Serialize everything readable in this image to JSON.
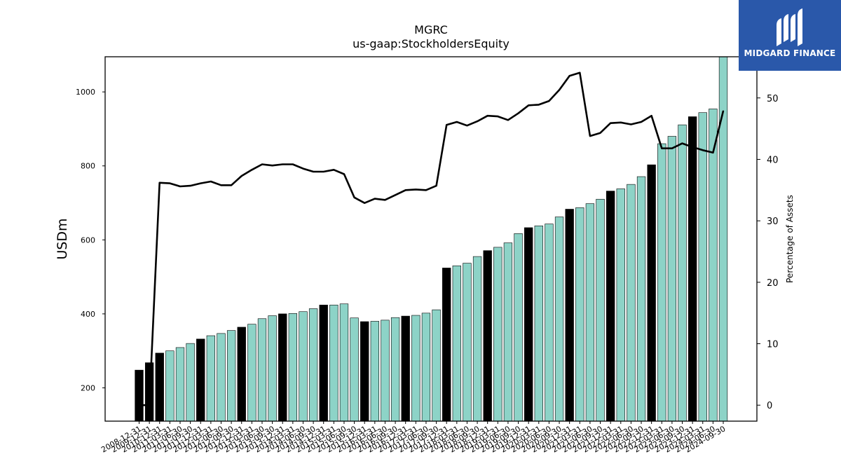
{
  "chart_data": {
    "type": "bar",
    "title": "MGRC",
    "subtitle": "us-gaap:StockholdersEquity",
    "ylabel": "USDm",
    "y2label": "Percentage of Assets",
    "ylim": [
      110,
      1095
    ],
    "y2lim": [
      -2.6,
      56.7
    ],
    "yticks": [
      200,
      400,
      600,
      800,
      1000
    ],
    "y2ticks": [
      0,
      10,
      20,
      30,
      40,
      50
    ],
    "colors": {
      "annual": "#000000",
      "quarter": "#8dd3c7",
      "line": "#000000"
    },
    "categories": [
      "2008-12-31",
      "2009-12-31",
      "2010-12-31",
      "2011-03-31",
      "2011-06-30",
      "2011-09-30",
      "2011-12-31",
      "2012-03-31",
      "2012-06-30",
      "2012-09-30",
      "2012-12-31",
      "2013-03-31",
      "2013-06-30",
      "2013-09-30",
      "2013-12-31",
      "2014-03-31",
      "2014-06-30",
      "2014-09-30",
      "2014-12-31",
      "2015-03-31",
      "2015-06-30",
      "2015-09-30",
      "2015-12-31",
      "2016-03-31",
      "2016-06-30",
      "2016-09-30",
      "2016-12-31",
      "2017-03-31",
      "2017-06-30",
      "2017-09-30",
      "2017-12-31",
      "2018-03-31",
      "2018-06-30",
      "2018-09-30",
      "2018-12-31",
      "2019-03-31",
      "2019-06-30",
      "2019-09-30",
      "2019-12-31",
      "2020-03-31",
      "2020-06-30",
      "2020-09-30",
      "2020-12-31",
      "2021-03-31",
      "2021-06-30",
      "2021-09-30",
      "2021-12-31",
      "2022-03-31",
      "2022-06-30",
      "2022-09-30",
      "2022-12-31",
      "2023-03-31",
      "2023-06-30",
      "2023-09-30",
      "2023-12-31",
      "2024-03-31",
      "2024-06-30",
      "2024-09-30"
    ],
    "annual": [
      true,
      true,
      true,
      false,
      false,
      false,
      true,
      false,
      false,
      false,
      true,
      false,
      false,
      false,
      true,
      false,
      false,
      false,
      true,
      false,
      false,
      false,
      true,
      false,
      false,
      false,
      true,
      false,
      false,
      false,
      true,
      false,
      false,
      false,
      true,
      false,
      false,
      false,
      true,
      false,
      false,
      false,
      true,
      false,
      false,
      false,
      true,
      false,
      false,
      false,
      true,
      false,
      false,
      false,
      true,
      false,
      false,
      false
    ],
    "series": [
      {
        "name": "",
        "type": "bar",
        "values": [
          248,
          268,
          294,
          300,
          309,
          320,
          332,
          341,
          347,
          355,
          364,
          372,
          387,
          395,
          400,
          401,
          406,
          414,
          424,
          424,
          427,
          389,
          379,
          380,
          383,
          390,
          394,
          396,
          402,
          411,
          524,
          530,
          537,
          555,
          571,
          580,
          592,
          617,
          633,
          638,
          643,
          662,
          683,
          687,
          698,
          710,
          732,
          738,
          750,
          771,
          803,
          860,
          880,
          911,
          933,
          944,
          954,
          1095
        ]
      },
      {
        "name": "",
        "type": "line",
        "axis": "right",
        "values": [
          0.0,
          0.0,
          36.2,
          36.1,
          35.6,
          35.7,
          36.1,
          36.4,
          35.8,
          35.8,
          37.3,
          38.3,
          39.2,
          39.0,
          39.2,
          39.2,
          38.5,
          38.0,
          38.0,
          38.3,
          37.6,
          33.8,
          32.9,
          33.6,
          33.4,
          34.2,
          35.0,
          35.1,
          35.0,
          35.7,
          45.6,
          46.1,
          45.5,
          46.2,
          47.1,
          47.0,
          46.4,
          47.5,
          48.8,
          48.9,
          49.5,
          51.3,
          53.6,
          54.1,
          43.8,
          44.3,
          45.9,
          46.0,
          45.7,
          46.1,
          47.1,
          41.8,
          41.8,
          42.6,
          42.0,
          41.5,
          41.1,
          47.9
        ]
      }
    ],
    "grid": false,
    "legend": "none"
  },
  "brand": {
    "name": "MIDGARD FINANCE",
    "color": "#2a58aa",
    "icon": "midgard-logo-icon"
  }
}
